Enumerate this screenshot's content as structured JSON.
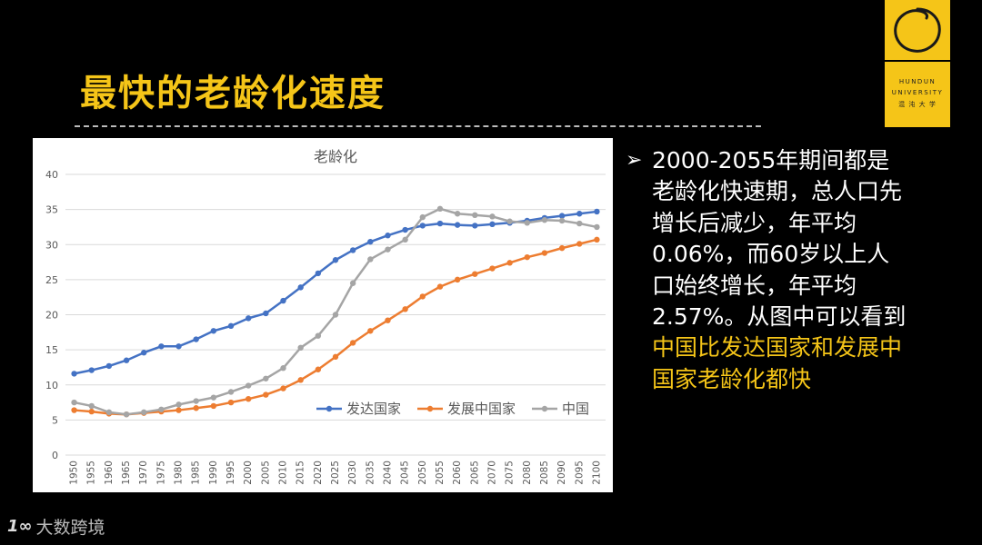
{
  "slide": {
    "title": "最快的老龄化速度"
  },
  "logo": {
    "line1": "HUNDUN",
    "line2": "UNIVERSITY",
    "line3": "混 沌 大 学"
  },
  "bullet": {
    "text_plain": "2000-2055年期间都是老龄化快速期，总人口先增长后减少，年平均0.06%，而60岁以上人口始终增长，年平均2.57%。从图中可以看到",
    "text_highlight": "中国比发达国家和发展中国家老龄化都快"
  },
  "watermark": {
    "logo": "1∞",
    "text": "大数跨境"
  },
  "colors": {
    "accent": "#f5c518",
    "developed": "#4472c4",
    "developing": "#ed7d31",
    "china": "#a5a5a5"
  },
  "chart_data": {
    "type": "line",
    "title": "老龄化",
    "xlabel": "",
    "ylabel": "",
    "ylim": [
      0,
      40
    ],
    "yticks": [
      0,
      5,
      10,
      15,
      20,
      25,
      30,
      35,
      40
    ],
    "grid": true,
    "legend_position": "inside-lower-right",
    "x": [
      "1950",
      "1955",
      "1960",
      "1965",
      "1970",
      "1975",
      "1980",
      "1985",
      "1990",
      "1995",
      "2000",
      "2005",
      "2010",
      "2015",
      "2020",
      "2025",
      "2030",
      "2035",
      "2040",
      "2045",
      "2050",
      "2055",
      "2060",
      "2065",
      "2070",
      "2075",
      "2080",
      "2085",
      "2090",
      "2095",
      "2100"
    ],
    "series": [
      {
        "name": "发达国家",
        "color": "#4472c4",
        "values": [
          11.6,
          12.1,
          12.7,
          13.5,
          14.6,
          15.5,
          15.5,
          16.5,
          17.7,
          18.4,
          19.5,
          20.2,
          22.0,
          23.9,
          25.9,
          27.8,
          29.2,
          30.4,
          31.3,
          32.1,
          32.7,
          33.0,
          32.8,
          32.7,
          32.9,
          33.1,
          33.4,
          33.8,
          34.1,
          34.4,
          34.7
        ]
      },
      {
        "name": "发展中国家",
        "color": "#ed7d31",
        "values": [
          6.4,
          6.2,
          5.9,
          5.8,
          6.0,
          6.2,
          6.4,
          6.7,
          7.0,
          7.5,
          8.0,
          8.6,
          9.5,
          10.7,
          12.2,
          14.0,
          16.0,
          17.7,
          19.2,
          20.8,
          22.6,
          24.0,
          25.0,
          25.8,
          26.6,
          27.4,
          28.2,
          28.8,
          29.5,
          30.1,
          30.7
        ]
      },
      {
        "name": "中国",
        "color": "#a5a5a5",
        "values": [
          7.5,
          7.0,
          6.1,
          5.8,
          6.1,
          6.5,
          7.2,
          7.7,
          8.2,
          9.0,
          9.9,
          10.9,
          12.4,
          15.3,
          17.0,
          20.0,
          24.5,
          27.9,
          29.3,
          30.7,
          33.9,
          35.1,
          34.4,
          34.2,
          34.0,
          33.3,
          33.1,
          33.5,
          33.4,
          33.0,
          32.5
        ]
      }
    ]
  }
}
